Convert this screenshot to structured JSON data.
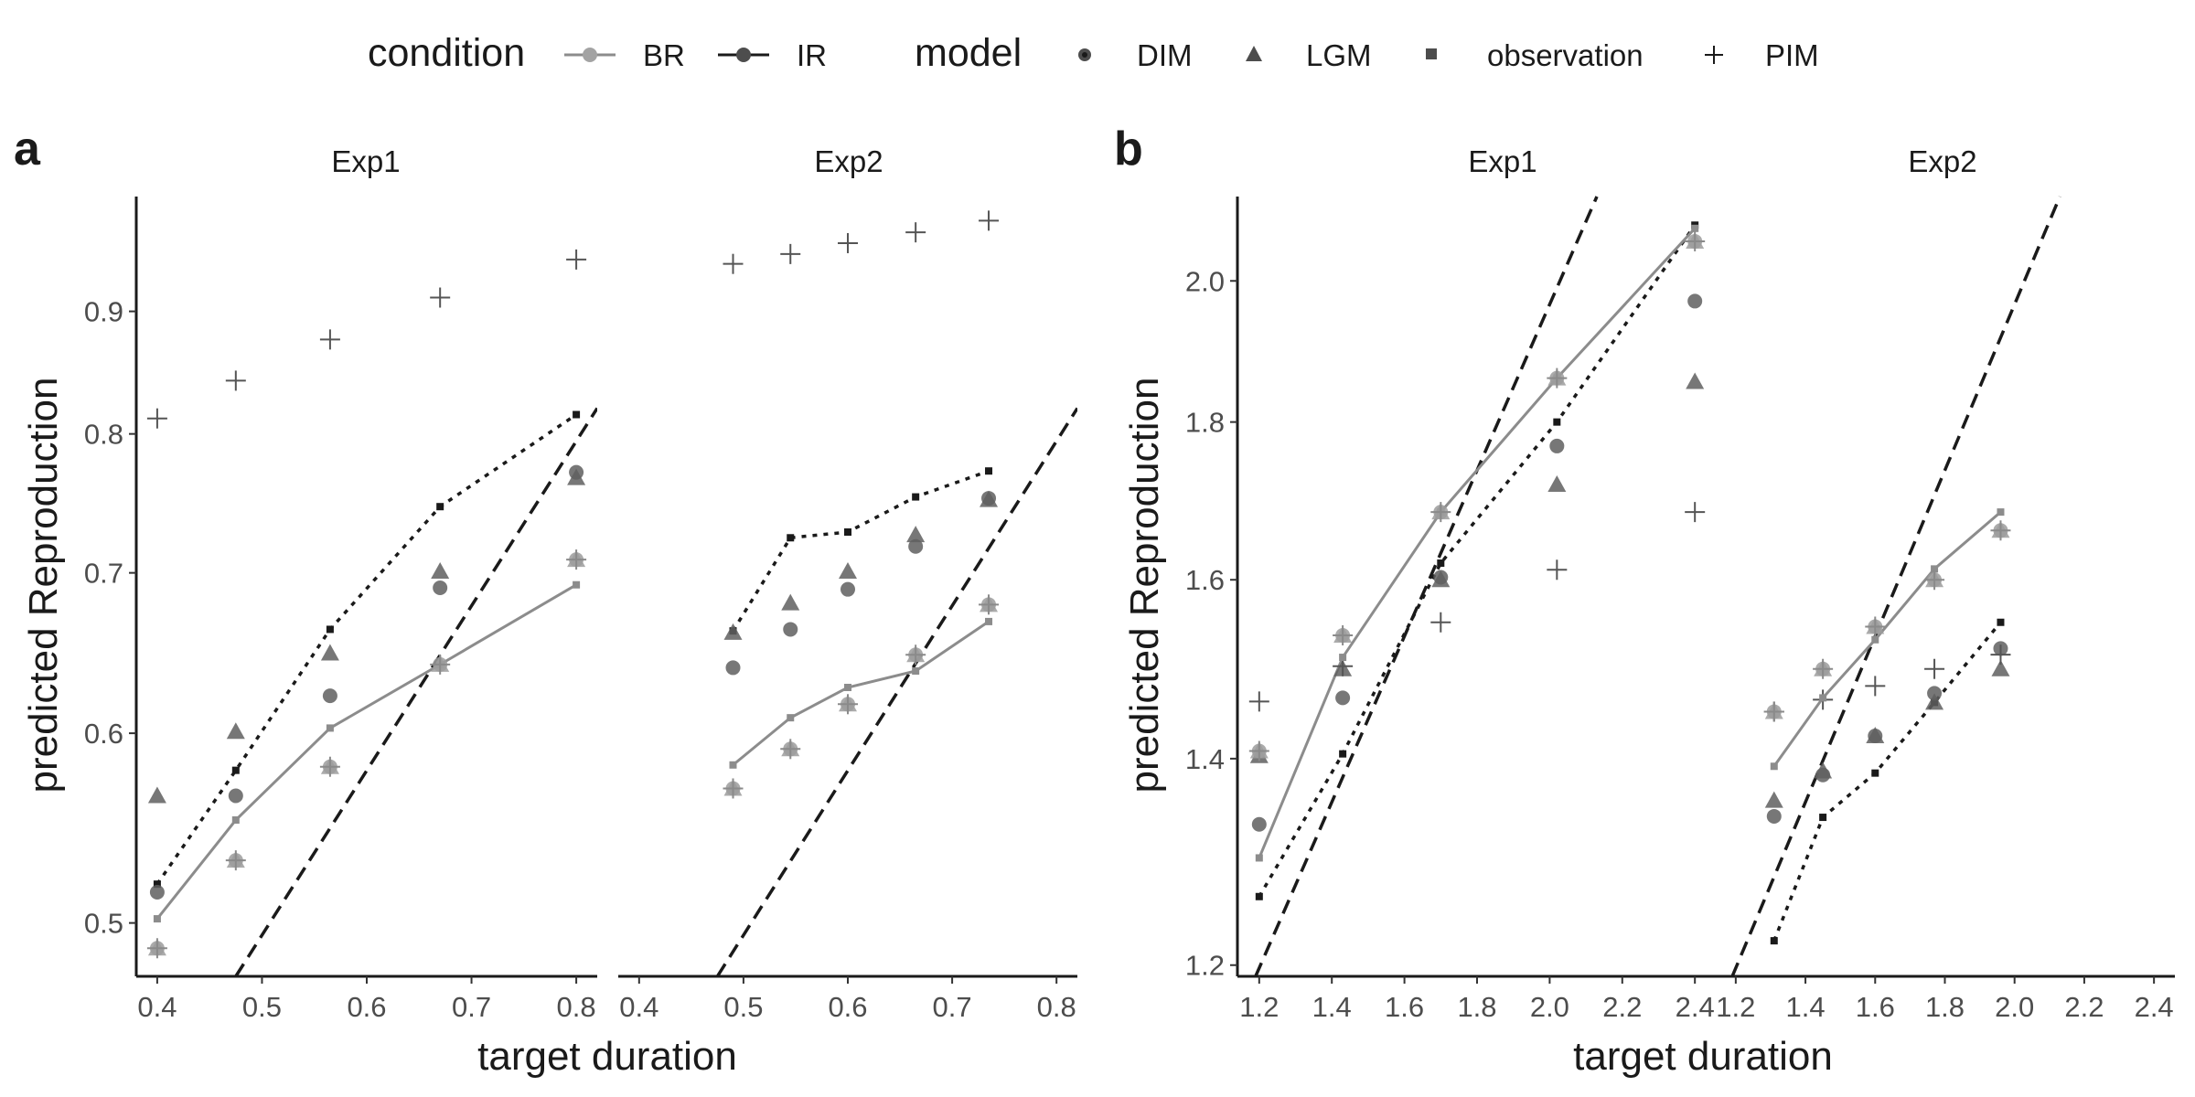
{
  "legend": {
    "condition_title": "condition",
    "conditions": [
      {
        "label": "BR",
        "color": "#8c8c8c"
      },
      {
        "label": "IR",
        "color": "#1a1a1a"
      }
    ],
    "model_title": "model",
    "models": [
      {
        "label": "DIM",
        "shape": "circle"
      },
      {
        "label": "LGM",
        "shape": "triangle"
      },
      {
        "label": "observation",
        "shape": "square"
      },
      {
        "label": "PIM",
        "shape": "plus"
      }
    ]
  },
  "colors": {
    "BR": "#8c8c8c",
    "IR": "#1a1a1a",
    "BR_points": "#9c9c9c",
    "IR_points": "#5f5f5f"
  },
  "chart_data": [
    {
      "panel": "a",
      "type": "scatter",
      "ylabel": "predicted Reproduction",
      "xlabel": "target duration",
      "y_scale": "log",
      "ylim": [
        0.475,
        1.005
      ],
      "y_ticks": [
        "0.5",
        "0.6",
        "0.7",
        "0.8",
        "0.9"
      ],
      "y_tick_values": [
        0.5,
        0.6,
        0.7,
        0.8,
        0.9
      ],
      "identity_line": true,
      "facets": [
        {
          "strip": "Exp1",
          "xlim": [
            0.38,
            0.82
          ],
          "x_ticks": [
            "0.4",
            "0.5",
            "0.6",
            "0.7",
            "0.8"
          ],
          "x_tick_values": [
            0.4,
            0.5,
            0.6,
            0.7,
            0.8
          ],
          "BR": {
            "x": [
              0.4,
              0.475,
              0.565,
              0.67,
              0.8
            ],
            "observation": [
              0.502,
              0.552,
              0.603,
              0.641,
              0.692
            ],
            "DIM": [
              0.488,
              0.531,
              0.581,
              0.641,
              0.709
            ],
            "LGM": [
              0.488,
              0.531,
              0.581,
              0.641,
              0.709
            ],
            "PIM": [
              0.488,
              0.531,
              0.581,
              0.641,
              0.709
            ]
          },
          "IR": {
            "x": [
              0.4,
              0.475,
              0.565,
              0.67,
              0.8
            ],
            "observation": [
              0.519,
              0.579,
              0.663,
              0.746,
              0.815
            ],
            "DIM": [
              0.515,
              0.565,
              0.622,
              0.69,
              0.771
            ],
            "LGM": [
              0.565,
              0.601,
              0.648,
              0.701,
              0.767
            ],
            "PIM": [
              0.812,
              0.842,
              0.876,
              0.912,
              0.946
            ]
          }
        },
        {
          "strip": "Exp2",
          "xlim": [
            0.38,
            0.82
          ],
          "x_ticks": [
            "0.4",
            "0.5",
            "0.6",
            "0.7",
            "0.8"
          ],
          "x_tick_values": [
            0.4,
            0.5,
            0.6,
            0.7,
            0.8
          ],
          "BR": {
            "x": [
              0.49,
              0.545,
              0.6,
              0.665,
              0.735
            ],
            "observation": [
              0.582,
              0.609,
              0.627,
              0.637,
              0.668
            ],
            "DIM": [
              0.569,
              0.591,
              0.617,
              0.647,
              0.679
            ],
            "LGM": [
              0.569,
              0.591,
              0.617,
              0.647,
              0.679
            ],
            "PIM": [
              0.569,
              0.591,
              0.617,
              0.647,
              0.679
            ]
          },
          "IR": {
            "x": [
              0.49,
              0.545,
              0.6,
              0.665,
              0.735
            ],
            "observation": [
              0.662,
              0.724,
              0.728,
              0.753,
              0.772
            ],
            "DIM": [
              0.639,
              0.663,
              0.689,
              0.718,
              0.752
            ],
            "LGM": [
              0.661,
              0.68,
              0.701,
              0.726,
              0.751
            ],
            "PIM": [
              0.942,
              0.951,
              0.961,
              0.971,
              0.982
            ]
          }
        }
      ]
    },
    {
      "panel": "b",
      "type": "scatter",
      "ylabel": "predicted Reproduction",
      "xlabel": "target duration",
      "y_scale": "log",
      "ylim": [
        1.19,
        2.13
      ],
      "y_ticks": [
        "1.2",
        "1.4",
        "1.6",
        "1.8",
        "2.0"
      ],
      "y_tick_values": [
        1.2,
        1.4,
        1.6,
        1.8,
        2.0
      ],
      "identity_line": true,
      "facets": [
        {
          "strip": "Exp1",
          "xlim": [
            1.14,
            2.46
          ],
          "x_ticks": [
            "1.2",
            "1.4",
            "1.6",
            "1.8",
            "2.0",
            "2.2",
            "2.4"
          ],
          "x_tick_values": [
            1.2,
            1.4,
            1.6,
            1.8,
            2.0,
            2.2,
            2.4
          ],
          "BR": {
            "x": [
              1.2,
              1.43,
              1.7,
              2.02,
              2.4
            ],
            "observation": [
              1.3,
              1.51,
              1.683,
              1.86,
              2.08
            ],
            "DIM": [
              1.408,
              1.535,
              1.683,
              1.86,
              2.06
            ],
            "LGM": [
              1.408,
              1.535,
              1.683,
              1.86,
              2.06
            ],
            "PIM": [
              1.408,
              1.535,
              1.683,
              1.86,
              2.06
            ]
          },
          "IR": {
            "x": [
              1.2,
              1.43,
              1.7,
              2.02,
              2.4
            ],
            "observation": [
              1.263,
              1.405,
              1.62,
              1.8,
              2.085
            ],
            "DIM": [
              1.333,
              1.465,
              1.603,
              1.768,
              1.97
            ],
            "LGM": [
              1.403,
              1.497,
              1.6,
              1.718,
              1.855
            ],
            "PIM": [
              1.461,
              1.5,
              1.55,
              1.612,
              1.683
            ]
          }
        },
        {
          "strip": "Exp2",
          "xlim": [
            1.14,
            2.46
          ],
          "x_ticks": [
            "1.2",
            "1.4",
            "1.6",
            "1.8",
            "2.0",
            "2.2",
            "2.4"
          ],
          "x_tick_values": [
            1.2,
            1.4,
            1.6,
            1.8,
            2.0,
            2.2,
            2.4
          ],
          "BR": {
            "x": [
              1.31,
              1.45,
              1.6,
              1.77,
              1.96
            ],
            "observation": [
              1.392,
              1.465,
              1.53,
              1.613,
              1.683
            ],
            "DIM": [
              1.45,
              1.497,
              1.545,
              1.6,
              1.66
            ],
            "LGM": [
              1.45,
              1.497,
              1.545,
              1.6,
              1.66
            ],
            "PIM": [
              1.45,
              1.497,
              1.545,
              1.6,
              1.66
            ]
          },
          "IR": {
            "x": [
              1.31,
              1.45,
              1.6,
              1.77,
              1.96
            ],
            "observation": [
              1.222,
              1.34,
              1.385,
              1.46,
              1.55
            ],
            "DIM": [
              1.341,
              1.383,
              1.424,
              1.47,
              1.52
            ],
            "LGM": [
              1.357,
              1.387,
              1.424,
              1.46,
              1.497
            ],
            "PIM": [
              1.45,
              1.463,
              1.478,
              1.497,
              1.513
            ]
          }
        }
      ]
    }
  ]
}
